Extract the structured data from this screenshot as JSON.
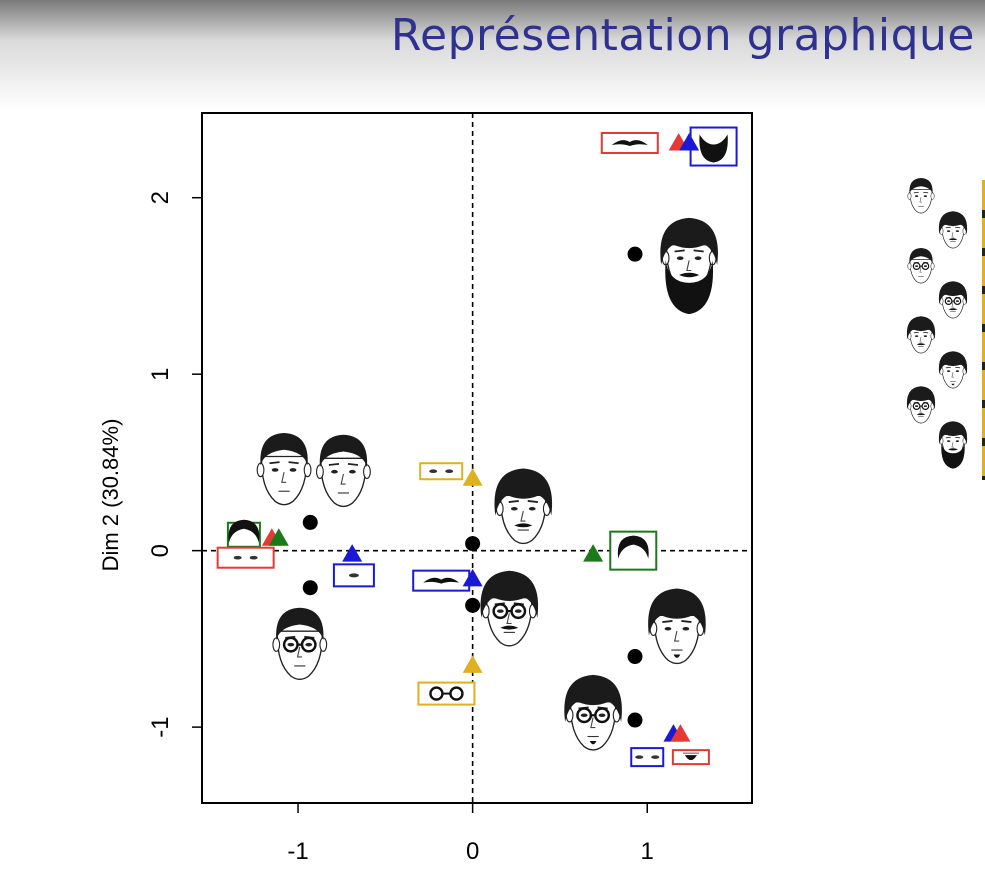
{
  "slide": {
    "title": "Représentation graphique"
  },
  "chart_data": {
    "type": "scatter",
    "title": "",
    "xlabel": "",
    "ylabel": "Dim 2 (30.84%)",
    "xlim": [
      -1.55,
      1.6
    ],
    "ylim": [
      -1.43,
      2.48
    ],
    "x_ticks": [
      "-1",
      "0",
      "1"
    ],
    "y_ticks": [
      "-1",
      "0",
      "1",
      "2"
    ],
    "reference_lines": {
      "x": 0,
      "y": 0,
      "style": "dashed"
    },
    "individuals": [
      {
        "x": -0.93,
        "y": 0.16
      },
      {
        "x": -0.93,
        "y": -0.21
      },
      {
        "x": 0.0,
        "y": 0.04
      },
      {
        "x": 0.0,
        "y": -0.31
      },
      {
        "x": 0.93,
        "y": 1.68
      },
      {
        "x": 0.93,
        "y": -0.6
      },
      {
        "x": 0.93,
        "y": -0.96
      }
    ],
    "categories": [
      {
        "x": 1.18,
        "y": 2.31,
        "color": "#e53935"
      },
      {
        "x": 1.24,
        "y": 2.31,
        "color": "#1a1ad6"
      },
      {
        "x": -1.15,
        "y": 0.07,
        "color": "#e53935"
      },
      {
        "x": -1.11,
        "y": 0.07,
        "color": "#1a7a1a"
      },
      {
        "x": -0.69,
        "y": -0.02,
        "color": "#1a1ad6"
      },
      {
        "x": 0.0,
        "y": 0.41,
        "color": "#e0b020"
      },
      {
        "x": 0.0,
        "y": -0.16,
        "color": "#1a1ad6"
      },
      {
        "x": 0.0,
        "y": -0.65,
        "color": "#e0b020"
      },
      {
        "x": 0.69,
        "y": -0.02,
        "color": "#1a7a1a"
      },
      {
        "x": 1.15,
        "y": -1.04,
        "color": "#1a1ad6"
      },
      {
        "x": 1.19,
        "y": -1.04,
        "color": "#e53935"
      }
    ],
    "category_images": [
      {
        "x": 0.9,
        "y": 2.31,
        "color": "#e53935",
        "icon": "mustache-icon"
      },
      {
        "x": 1.38,
        "y": 2.29,
        "color": "#1a1ad6",
        "icon": "beard-icon"
      },
      {
        "x": -1.31,
        "y": 0.09,
        "color": "#1a7a1a",
        "icon": "hair-icon"
      },
      {
        "x": -1.3,
        "y": -0.04,
        "color": "#e53935",
        "icon": "eyes-icon"
      },
      {
        "x": -0.68,
        "y": -0.14,
        "color": "#1a1ad6",
        "icon": "eye-icon"
      },
      {
        "x": -0.18,
        "y": 0.45,
        "color": "#e0b020",
        "icon": "eyes-icon"
      },
      {
        "x": -0.18,
        "y": -0.17,
        "color": "#1a1ad6",
        "icon": "mustache-icon"
      },
      {
        "x": -0.15,
        "y": -0.81,
        "color": "#e0b020",
        "icon": "glasses-icon"
      },
      {
        "x": 0.92,
        "y": 0.0,
        "color": "#1a7a1a",
        "icon": "hair-icon"
      },
      {
        "x": 1.0,
        "y": -1.17,
        "color": "#1a1ad6",
        "icon": "eyes-icon"
      },
      {
        "x": 1.25,
        "y": -1.17,
        "color": "#e53935",
        "icon": "goatee-icon"
      }
    ],
    "face_images": [
      {
        "x": -1.08,
        "y": 0.47,
        "hair": "plain",
        "glasses": false,
        "beard": "none",
        "mustache": false
      },
      {
        "x": -0.74,
        "y": 0.46,
        "hair": "plain",
        "glasses": false,
        "beard": "none",
        "mustache": false
      },
      {
        "x": -0.99,
        "y": -0.52,
        "hair": "plain",
        "glasses": true,
        "beard": "none",
        "mustache": false
      },
      {
        "x": 0.29,
        "y": 0.25,
        "hair": "mop",
        "glasses": false,
        "beard": "none",
        "mustache": true
      },
      {
        "x": 0.21,
        "y": -0.33,
        "hair": "mop",
        "glasses": true,
        "beard": "none",
        "mustache": true
      },
      {
        "x": 1.24,
        "y": 1.67,
        "hair": "mop",
        "glasses": false,
        "beard": "full",
        "mustache": true
      },
      {
        "x": 1.17,
        "y": -0.43,
        "hair": "mop",
        "glasses": false,
        "beard": "goatee",
        "mustache": false
      },
      {
        "x": 0.69,
        "y": -0.92,
        "hair": "mop",
        "glasses": true,
        "beard": "goatee",
        "mustache": false
      }
    ]
  },
  "icons": {
    "individual_marker": "filled-circle",
    "category_marker": "filled-triangle",
    "face": "face-icon"
  }
}
